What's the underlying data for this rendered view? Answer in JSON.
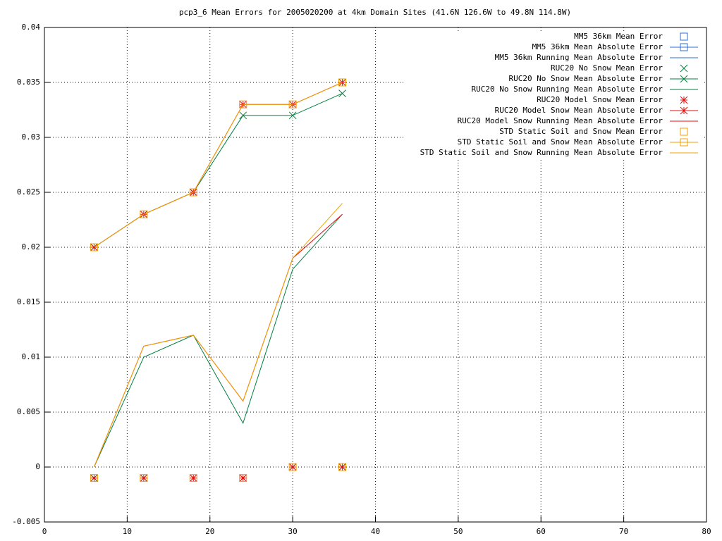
{
  "chart_data": {
    "type": "line",
    "title": "pcp3_6 Mean Errors for 2005020200 at 4km Domain Sites (41.6N 126.6W to 49.8N 114.8W)",
    "x": [
      6,
      12,
      18,
      24,
      30,
      36
    ],
    "xlim": [
      0,
      80
    ],
    "xticks": [
      0,
      10,
      20,
      30,
      40,
      50,
      60,
      70,
      80
    ],
    "ylim": [
      -0.005,
      0.04
    ],
    "yticks": [
      -0.005,
      0,
      0.005,
      0.01,
      0.015,
      0.02,
      0.025,
      0.03,
      0.035,
      0.04
    ],
    "grid": true,
    "legend": "top-right",
    "series": [
      {
        "name": "MM5 36km Mean Error",
        "color": "#2b6fd6",
        "style": "points",
        "marker": "square",
        "values": [
          null,
          null,
          null,
          null,
          null,
          null
        ]
      },
      {
        "name": "MM5 36km Mean Absolute Error",
        "color": "#2b6fd6",
        "style": "linespoints",
        "marker": "square",
        "values": [
          null,
          null,
          null,
          null,
          null,
          null
        ]
      },
      {
        "name": "MM5 36km Running Mean Absolute Error",
        "color": "#2b6fd6",
        "style": "lines",
        "values": [
          null,
          null,
          null,
          null,
          null,
          null
        ]
      },
      {
        "name": "RUC20 No Snow Mean Error",
        "color": "#008040",
        "style": "points",
        "marker": "cross",
        "values": [
          -0.001,
          -0.001,
          -0.001,
          -0.001,
          0,
          0
        ]
      },
      {
        "name": "RUC20 No Snow Mean Absolute Error",
        "color": "#008040",
        "style": "linespoints",
        "marker": "cross",
        "values": [
          0.02,
          0.023,
          0.025,
          0.032,
          0.032,
          0.034
        ]
      },
      {
        "name": "RUC20 No Snow Running Mean Absolute Error",
        "color": "#008040",
        "style": "lines",
        "values": [
          0,
          0.01,
          0.012,
          0.004,
          0.018,
          0.023
        ]
      },
      {
        "name": "RUC20 Model Snow Mean Error",
        "color": "#e01010",
        "style": "points",
        "marker": "star",
        "values": [
          -0.001,
          -0.001,
          -0.001,
          -0.001,
          0,
          0
        ]
      },
      {
        "name": "RUC20 Model Snow Mean Absolute Error",
        "color": "#e01010",
        "style": "linespoints",
        "marker": "star",
        "values": [
          0.02,
          0.023,
          0.025,
          0.033,
          0.033,
          0.035
        ]
      },
      {
        "name": "RUC20 Model Snow Running Mean Absolute Error",
        "color": "#e01010",
        "style": "lines",
        "values": [
          0,
          0.011,
          0.012,
          0.006,
          0.019,
          0.023
        ]
      },
      {
        "name": "STD Static Soil and Snow Mean Error",
        "color": "#f0a000",
        "style": "points",
        "marker": "square",
        "values": [
          -0.001,
          -0.001,
          -0.001,
          -0.001,
          0,
          0
        ]
      },
      {
        "name": "STD Static Soil and Snow Mean Absolute Error",
        "color": "#f0a000",
        "style": "linespoints",
        "marker": "square",
        "values": [
          0.02,
          0.023,
          0.025,
          0.033,
          0.033,
          0.035
        ]
      },
      {
        "name": "STD Static Soil and Snow Running Mean Absolute Error",
        "color": "#f0a000",
        "style": "lines",
        "values": [
          0,
          0.011,
          0.012,
          0.006,
          0.019,
          0.024
        ]
      }
    ]
  }
}
